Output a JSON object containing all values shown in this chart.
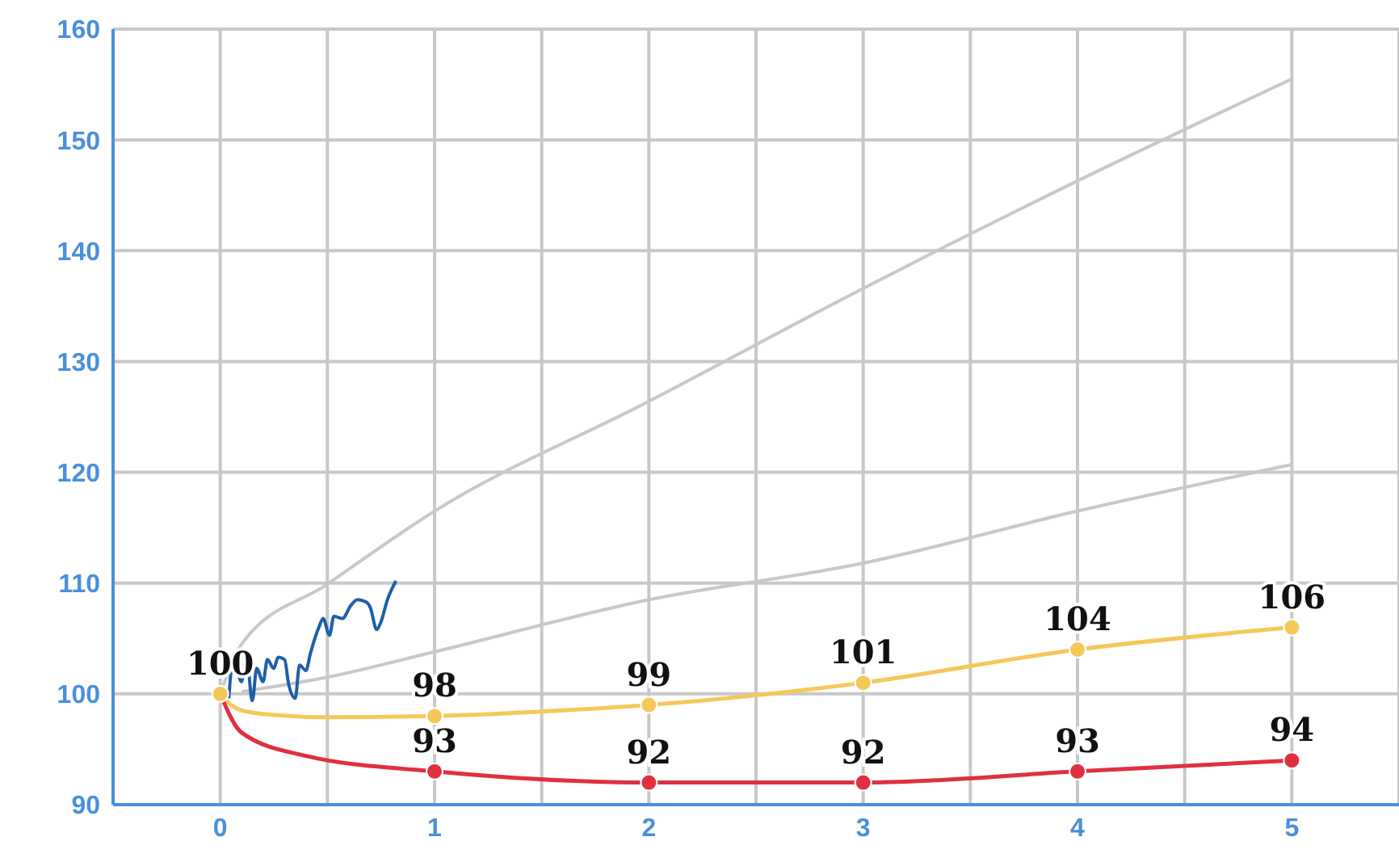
{
  "chart_data": {
    "type": "line",
    "xlim": [
      -0.5,
      5.5
    ],
    "ylim": [
      90,
      160
    ],
    "xticks": [
      {
        "value": -0.5,
        "label": null
      },
      0,
      {
        "value": 0.5,
        "label": null
      },
      1,
      {
        "value": 1.5,
        "label": null
      },
      2,
      {
        "value": 2.5,
        "label": null
      },
      3,
      {
        "value": 3.5,
        "label": null
      },
      4,
      {
        "value": 4.5,
        "label": null
      },
      5,
      {
        "value": 5.5,
        "label": null
      }
    ],
    "yticks": [
      90,
      100,
      110,
      120,
      130,
      140,
      150,
      160
    ],
    "grid": true,
    "line_style": "solid",
    "series": [
      {
        "color": "#c8c8c8",
        "marker": "none",
        "x": [
          0,
          0.1,
          0.5,
          1,
          2,
          3,
          4,
          5
        ],
        "values": [
          100,
          104.5,
          109.9,
          116.5,
          126.4,
          136.6,
          146.3,
          155.5
        ]
      },
      {
        "color": "#c8c8c8",
        "marker": "none",
        "x": [
          0.1,
          0.5,
          1,
          2,
          3,
          4,
          5
        ],
        "values": [
          100.2,
          101.5,
          103.8,
          108.5,
          111.8,
          116.5,
          120.7
        ]
      },
      {
        "color": "#f5c85a",
        "marker": "circle",
        "x": [
          0,
          0.05,
          0.1,
          0.25,
          0.5,
          1,
          1.5,
          2,
          3,
          4,
          5
        ],
        "values": [
          100,
          99,
          98.5,
          98.1,
          97.9,
          98,
          98.4,
          99,
          101,
          104,
          106
        ],
        "value_labels": [
          "100",
          null,
          null,
          null,
          null,
          "98",
          null,
          "99",
          "101",
          "104",
          "106"
        ]
      },
      {
        "color": "#e03040",
        "marker": "circle",
        "x": [
          0,
          0.1,
          0.4,
          1,
          2,
          3,
          4,
          5
        ],
        "values": [
          100,
          96.5,
          94.4,
          93,
          92,
          92,
          93,
          94
        ],
        "value_labels": [
          null,
          null,
          null,
          "93",
          "92",
          "92",
          "93",
          "94"
        ]
      },
      {
        "color": "#1f5fa8",
        "marker": "none",
        "x": [
          0.04,
          0.06,
          0.1,
          0.12,
          0.15,
          0.17,
          0.2,
          0.22,
          0.25,
          0.27,
          0.3,
          0.32,
          0.35,
          0.37,
          0.4,
          0.42,
          0.46,
          0.48,
          0.51,
          0.53,
          0.57,
          0.61,
          0.64,
          0.68,
          0.7,
          0.73,
          0.75,
          0.78,
          0.82
        ],
        "values": [
          99.6,
          103.1,
          101.1,
          103.8,
          99.4,
          102.3,
          101.1,
          103.1,
          102.3,
          103.3,
          103.1,
          100.8,
          99.6,
          102.6,
          102.1,
          103.6,
          106,
          106.8,
          105.3,
          107,
          106.8,
          108,
          108.5,
          108.3,
          107.8,
          105.8,
          106.5,
          108.5,
          110.2
        ]
      }
    ]
  }
}
